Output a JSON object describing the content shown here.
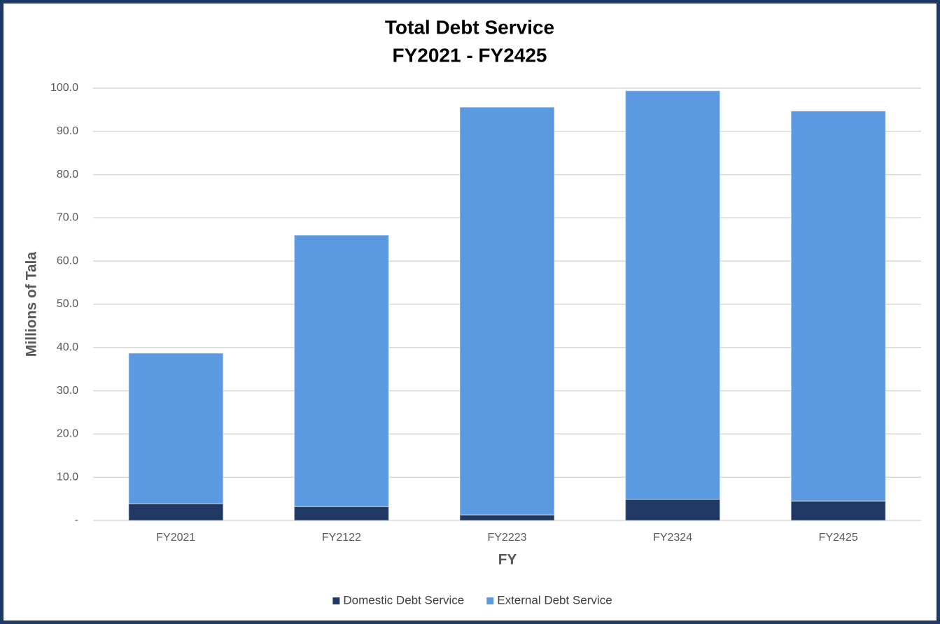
{
  "chart_data": {
    "type": "stacked-bar",
    "title": "Total Debt Service",
    "subtitle": "FY2021 - FY2425",
    "x_label": "FY",
    "y_label": "Millions of Tala",
    "categories": [
      "FY2021",
      "FY2122",
      "FY2223",
      "FY2324",
      "FY2425"
    ],
    "series": [
      {
        "name": "Domestic Debt Service",
        "color": "#1f3864",
        "values": [
          3.9,
          3.2,
          1.3,
          4.9,
          4.5
        ]
      },
      {
        "name": "External Debt Service",
        "color": "#5b9ae0",
        "values": [
          34.8,
          62.8,
          94.3,
          94.5,
          90.2
        ]
      }
    ],
    "ylim": [
      0,
      100
    ],
    "yticks": [
      {
        "value": 0,
        "label": "-"
      },
      {
        "value": 10,
        "label": "10.0"
      },
      {
        "value": 20,
        "label": "20.0"
      },
      {
        "value": 30,
        "label": "30.0"
      },
      {
        "value": 40,
        "label": "40.0"
      },
      {
        "value": 50,
        "label": "50.0"
      },
      {
        "value": 60,
        "label": "60.0"
      },
      {
        "value": 70,
        "label": "70.0"
      },
      {
        "value": 80,
        "label": "80.0"
      },
      {
        "value": 90,
        "label": "90.0"
      },
      {
        "value": 100,
        "label": "100.0"
      }
    ],
    "grid": true,
    "legend": "bottom"
  }
}
